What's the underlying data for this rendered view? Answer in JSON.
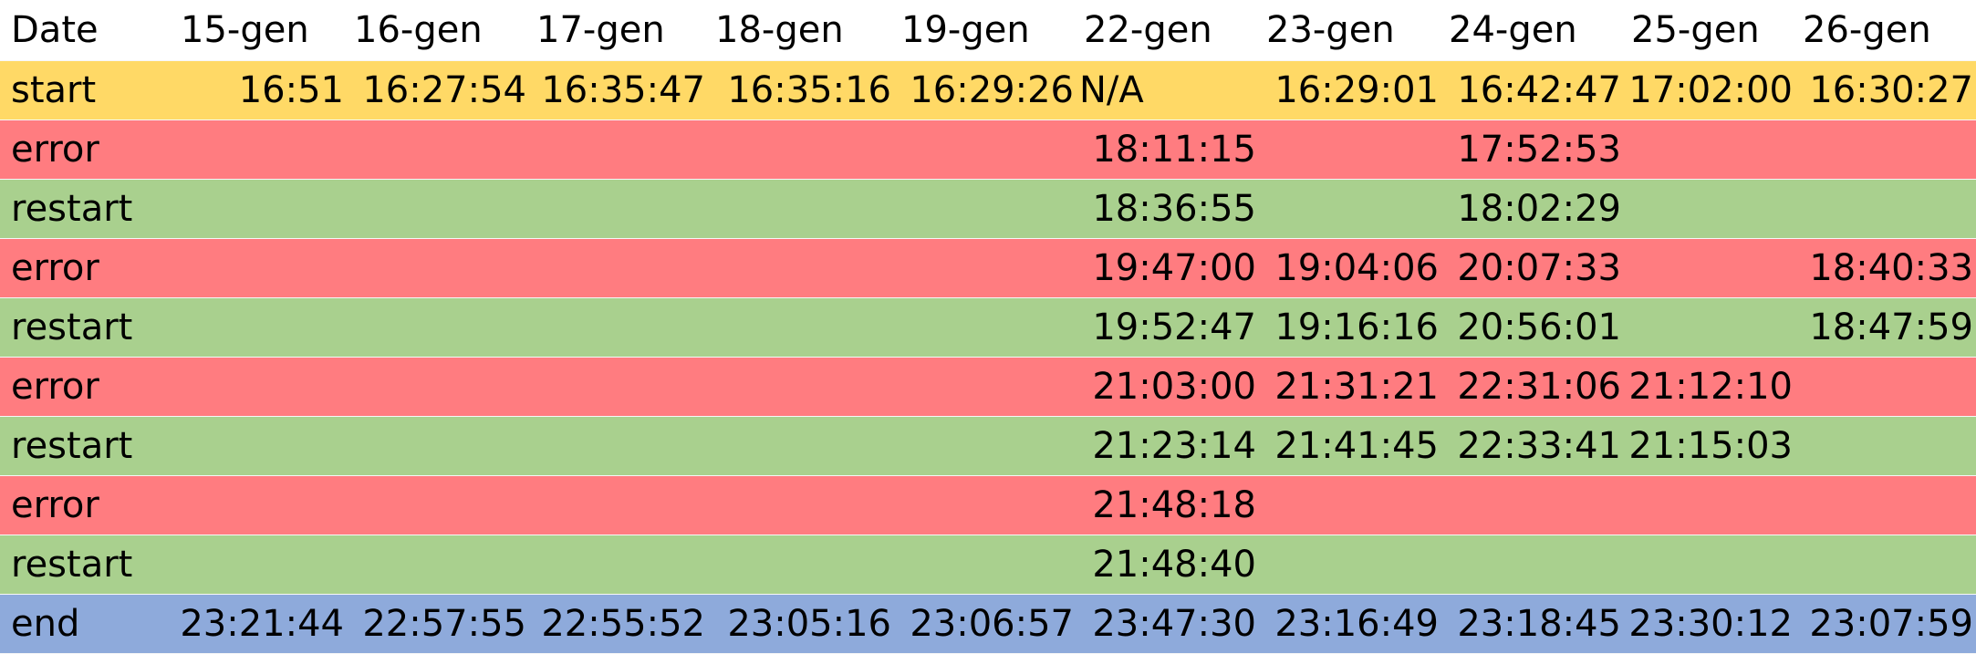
{
  "sheet": {
    "header_label": "Date",
    "dates": [
      "15-gen",
      "16-gen",
      "17-gen",
      "18-gen",
      "19-gen",
      "22-gen",
      "23-gen",
      "24-gen",
      "25-gen",
      "26-gen"
    ],
    "rows": [
      {
        "kind": "start",
        "label": "start",
        "color": "#ffd966",
        "cells": [
          "16:51",
          "16:27:54",
          "16:35:47",
          "16:35:16",
          "16:29:26",
          "N/A",
          "16:29:01",
          "16:42:47",
          "17:02:00",
          "16:30:27"
        ]
      },
      {
        "kind": "error",
        "label": "error",
        "color": "#ff7c80",
        "cells": [
          "",
          "",
          "",
          "",
          "",
          "18:11:15",
          "",
          "17:52:53",
          "",
          ""
        ]
      },
      {
        "kind": "restart",
        "label": "restart",
        "color": "#a9d08e",
        "cells": [
          "",
          "",
          "",
          "",
          "",
          "18:36:55",
          "",
          "18:02:29",
          "",
          ""
        ]
      },
      {
        "kind": "error",
        "label": "error",
        "color": "#ff7c80",
        "cells": [
          "",
          "",
          "",
          "",
          "",
          "19:47:00",
          "19:04:06",
          "20:07:33",
          "",
          "18:40:33"
        ]
      },
      {
        "kind": "restart",
        "label": "restart",
        "color": "#a9d08e",
        "cells": [
          "",
          "",
          "",
          "",
          "",
          "19:52:47",
          "19:16:16",
          "20:56:01",
          "",
          "18:47:59"
        ]
      },
      {
        "kind": "error",
        "label": "error",
        "color": "#ff7c80",
        "cells": [
          "",
          "",
          "",
          "",
          "",
          "21:03:00",
          "21:31:21",
          "22:31:06",
          "21:12:10",
          ""
        ]
      },
      {
        "kind": "restart",
        "label": "restart",
        "color": "#a9d08e",
        "cells": [
          "",
          "",
          "",
          "",
          "",
          "21:23:14",
          "21:41:45",
          "22:33:41",
          "21:15:03",
          ""
        ]
      },
      {
        "kind": "error",
        "label": "error",
        "color": "#ff7c80",
        "cells": [
          "",
          "",
          "",
          "",
          "",
          "21:48:18",
          "",
          "",
          "",
          ""
        ]
      },
      {
        "kind": "restart",
        "label": "restart",
        "color": "#a9d08e",
        "cells": [
          "",
          "",
          "",
          "",
          "",
          "21:48:40",
          "",
          "",
          "",
          ""
        ]
      },
      {
        "kind": "end",
        "label": "end",
        "color": "#8eaadb",
        "cells": [
          "23:21:44",
          "22:57:55",
          "22:55:52",
          "23:05:16",
          "23:06:57",
          "23:47:30",
          "23:16:49",
          "23:18:45",
          "23:30:12",
          "23:07:59"
        ]
      }
    ]
  }
}
